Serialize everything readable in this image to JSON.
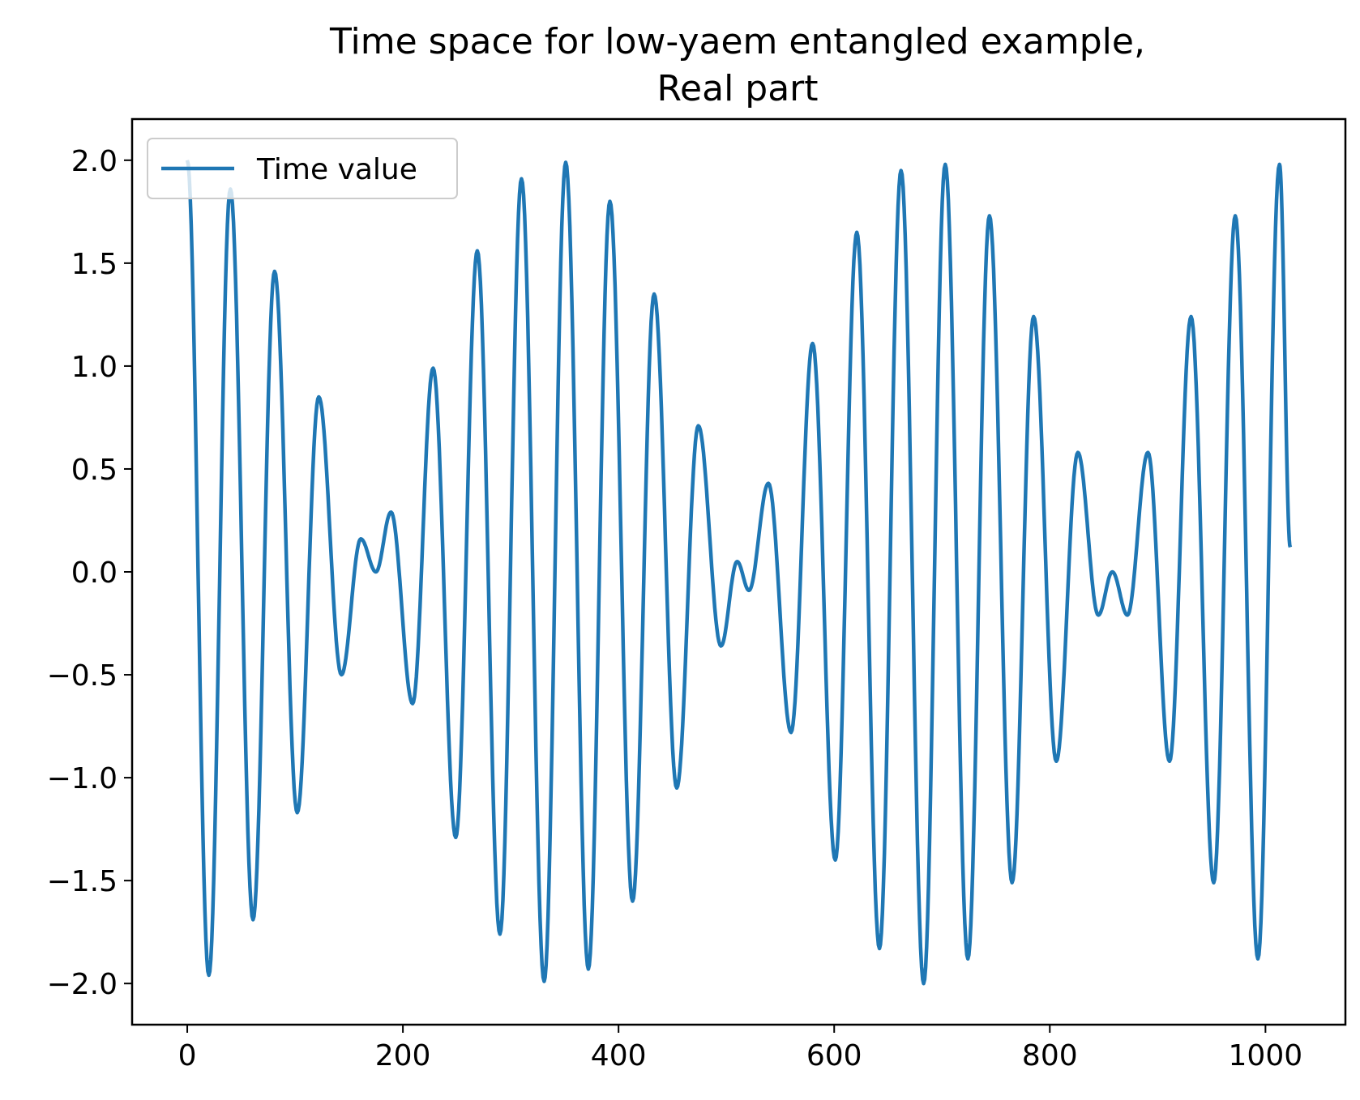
{
  "chart_data": {
    "type": "line",
    "title_lines": [
      "Time space for low-yaem entangled example,",
      "Real part"
    ],
    "xlabel": "",
    "ylabel": "",
    "xlim": [
      -51.15,
      1074.15
    ],
    "ylim": [
      -2.2,
      2.2
    ],
    "xticks": [
      0,
      200,
      400,
      600,
      800,
      1000
    ],
    "xtick_labels": [
      "0",
      "200",
      "400",
      "600",
      "800",
      "1000"
    ],
    "yticks": [
      2.0,
      1.5,
      1.0,
      0.5,
      0.0,
      -0.5,
      -1.0,
      -1.5,
      -2.0
    ],
    "ytick_labels": [
      "2.0",
      "1.5",
      "1.0",
      "0.5",
      "0.0",
      "−0.5",
      "−1.0",
      "−1.5",
      "−2.0"
    ],
    "grid": false,
    "legend": {
      "location": "upper left",
      "entries": [
        "Time value"
      ]
    },
    "series": [
      {
        "name": "Time value",
        "color": "#1f77b4",
        "x": [
          0,
          20,
          40,
          61,
          81,
          102,
          122,
          143,
          161,
          175,
          189,
          209,
          228,
          249,
          269,
          290,
          310,
          331,
          351,
          372,
          392,
          413,
          433,
          454,
          474,
          495,
          510,
          521,
          539,
          560,
          580,
          601,
          621,
          642,
          662,
          683,
          703,
          724,
          744,
          765,
          785,
          806,
          826,
          845,
          858,
          872,
          891,
          911,
          931,
          952,
          972,
          993,
          1013,
          1023
        ],
        "y": [
          2.0,
          -1.96,
          1.86,
          -1.69,
          1.46,
          -1.17,
          0.85,
          -0.5,
          0.16,
          0.0,
          0.29,
          -0.64,
          0.99,
          -1.29,
          1.56,
          -1.76,
          1.91,
          -1.99,
          1.99,
          -1.93,
          1.8,
          -1.6,
          1.35,
          -1.05,
          0.71,
          -0.36,
          0.05,
          -0.09,
          0.43,
          -0.78,
          1.11,
          -1.4,
          1.65,
          -1.83,
          1.95,
          -2.0,
          1.98,
          -1.88,
          1.73,
          -1.51,
          1.24,
          -0.92,
          0.58,
          -0.21,
          0.0,
          -0.21,
          0.58,
          -0.92,
          1.24,
          -1.51,
          1.73,
          -1.88,
          1.98,
          0.12
        ]
      }
    ]
  }
}
